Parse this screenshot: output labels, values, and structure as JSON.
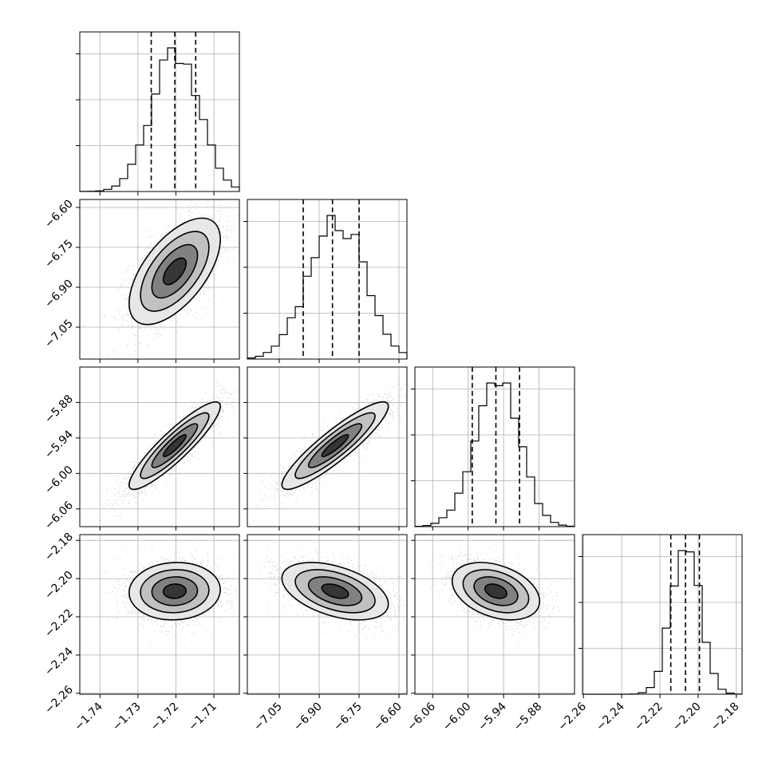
{
  "chart_data": {
    "type": "corner",
    "params": [
      {
        "mean": -1.7203,
        "sd": 0.006,
        "range": [
          -1.7453,
          -1.7033
        ],
        "ticks": [
          -1.74,
          -1.73,
          -1.72,
          -1.71
        ],
        "tick_labels": [
          "−1.74",
          "−1.73",
          "−1.72",
          "−1.71"
        ],
        "quantiles": [
          -1.7265,
          -1.7203,
          -1.7148
        ]
      },
      {
        "mean": -6.84,
        "sd": 0.1,
        "range": [
          -7.17,
          -6.57
        ],
        "ticks": [
          -7.05,
          -6.9,
          -6.75,
          -6.6
        ],
        "tick_labels": [
          "−7.05",
          "−6.90",
          "−6.75",
          "−6.60"
        ],
        "quantiles": [
          -6.96,
          -6.85,
          -6.75
        ]
      },
      {
        "mean": -5.953,
        "sd": 0.037,
        "range": [
          -6.09,
          -5.82
        ],
        "ticks": [
          -6.06,
          -6.0,
          -5.94,
          -5.88
        ],
        "tick_labels": [
          "−6.06",
          "−6.00",
          "−5.94",
          "−5.88"
        ],
        "quantiles": [
          -5.993,
          -5.953,
          -5.913
        ]
      },
      {
        "mean": -2.2066,
        "sd": 0.0075,
        "range": [
          -2.2605,
          -2.177
        ],
        "ticks": [
          -2.26,
          -2.24,
          -2.22,
          -2.2,
          -2.18
        ],
        "tick_labels": [
          "−2.26",
          "−2.24",
          "−2.22",
          "−2.20",
          "−2.18"
        ],
        "quantiles": [
          -2.2143,
          -2.2066,
          -2.1993
        ]
      }
    ],
    "correlations": [
      [
        1,
        0.6,
        0.9,
        0.05
      ],
      [
        0.6,
        1,
        0.9,
        -0.45
      ],
      [
        0.9,
        0.9,
        1,
        -0.35
      ],
      [
        0.05,
        -0.45,
        -0.35,
        1
      ]
    ],
    "contour_levels_sigma": [
      0.5,
      1.0,
      1.5,
      2.0
    ],
    "grid": true,
    "colors": {
      "points": "#bdbdbd",
      "contour": "#000000",
      "hist": "#000000"
    }
  }
}
